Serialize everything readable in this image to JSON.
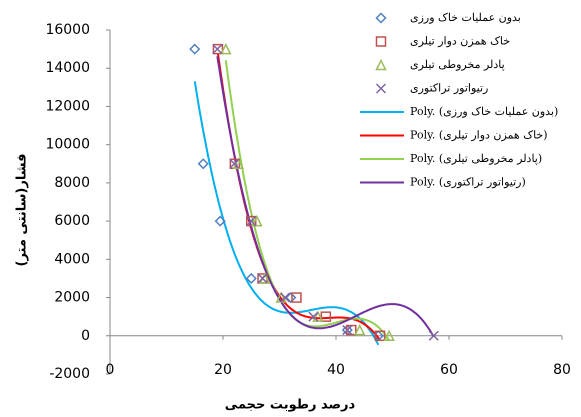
{
  "chart_data": {
    "type": "scatter",
    "xlabel": "درصد رطوبت حجمی",
    "ylabel": "فشار(سانتی متر)",
    "xlim": [
      0,
      80
    ],
    "xticks": [
      0,
      20,
      40,
      60,
      80
    ],
    "ylim": [
      -2000,
      16000
    ],
    "yticks": [
      -2000,
      0,
      2000,
      4000,
      6000,
      8000,
      10000,
      12000,
      14000,
      16000
    ],
    "legend": "top-right",
    "series": [
      {
        "name": "بدون عملیات خاک ورزی",
        "color": "#4f81bd",
        "marker": "diamond",
        "x": [
          15,
          16.5,
          19.5,
          25,
          32,
          42,
          47.5
        ],
        "values": [
          15000,
          9000,
          6000,
          3000,
          2000,
          300,
          0
        ],
        "trendline": {
          "name": "Poly. (بدون عملیات خاک ورزی)",
          "color": "#00b0f0",
          "order": 3
        }
      },
      {
        "name": "خاک همزن دوار تیلری",
        "color": "#c0504d",
        "marker": "square",
        "x": [
          19.1,
          22.1,
          25,
          27,
          33,
          38.2,
          42.7,
          47.8
        ],
        "values": [
          15000,
          9000,
          6000,
          3000,
          2000,
          1000,
          300,
          0
        ],
        "trendline": {
          "name": "Poly. (خاک همزن دوار تیلری)",
          "color": "#ff0000",
          "order": 3
        }
      },
      {
        "name": "پادلر مخروطی تیلری",
        "color": "#9bbb59",
        "marker": "triangle",
        "x": [
          20.5,
          22.7,
          26,
          27.4,
          30.3,
          36.8,
          44.2,
          49.4
        ],
        "values": [
          15000,
          9000,
          6000,
          3000,
          2000,
          1000,
          300,
          0
        ],
        "trendline": {
          "name": "Poly. (پادلر مخروطی تیلری)",
          "color": "#92d050",
          "order": 3
        }
      },
      {
        "name": "رتیواتور تراکتوری",
        "color": "#8064a2",
        "marker": "x",
        "x": [
          19,
          22,
          25,
          27,
          31,
          36,
          42,
          57.3
        ],
        "values": [
          15000,
          9000,
          6000,
          3000,
          2000,
          1000,
          300,
          0
        ],
        "trendline": {
          "name": "Poly. (رتیواتور تراکتوری)",
          "color": "#7030a0",
          "order": 3
        }
      }
    ]
  }
}
